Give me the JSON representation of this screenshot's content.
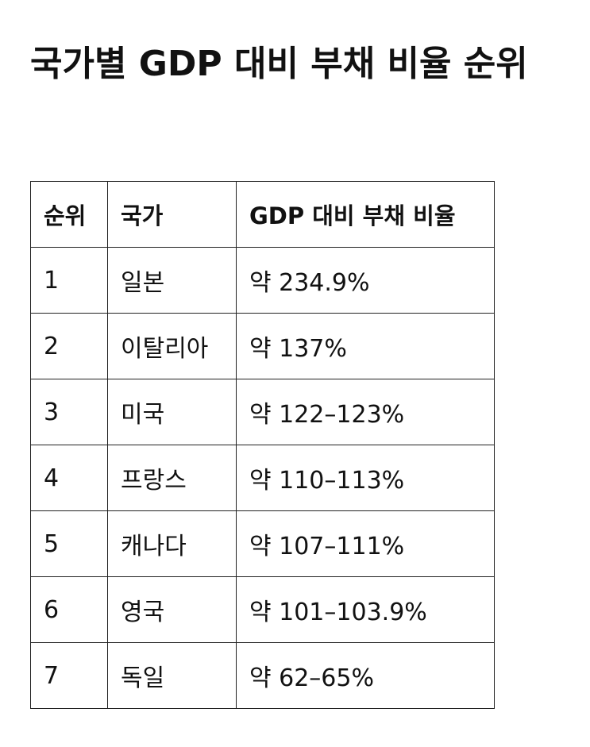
{
  "header": {
    "title": "국가별 GDP 대비 부채 비율 순위"
  },
  "table": {
    "header": [
      "순위",
      "국가",
      "GDP 대비 부채 비율"
    ],
    "rows": [
      [
        "1",
        "일본",
        "약 234.9%"
      ],
      [
        "2",
        "이탈리아",
        "약 137%"
      ],
      [
        "3",
        "미국",
        "약 122–123%"
      ],
      [
        "4",
        "프랑스",
        "약 110–113%"
      ],
      [
        "5",
        "캐나다",
        "약 107–111%"
      ],
      [
        "6",
        "영국",
        "약 101–103.9%"
      ],
      [
        "7",
        "독일",
        "약 62–65%"
      ]
    ]
  }
}
